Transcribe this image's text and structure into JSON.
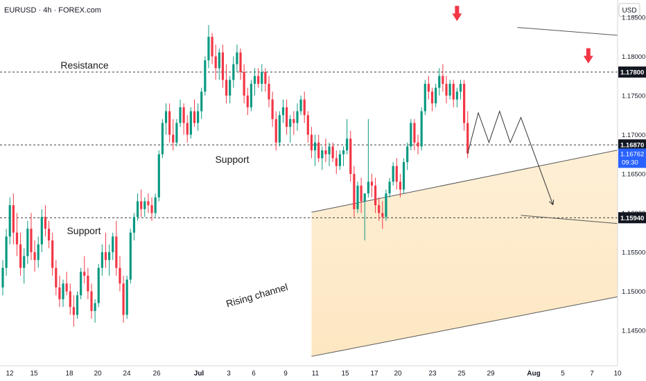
{
  "header": {
    "symbol_line": "EURUSD · 4h · FOREX.com"
  },
  "price_axis": {
    "currency": "USD",
    "ticks": [
      "1.18500",
      "1.18000",
      "1.17500",
      "1.17000",
      "1.16500",
      "1.16000",
      "1.15500",
      "1.15000",
      "1.14500"
    ],
    "markers": [
      {
        "value": "1.17800",
        "style": "dark"
      },
      {
        "value": "1.16870",
        "style": "dark"
      },
      {
        "value": "1.15940",
        "style": "dark"
      }
    ],
    "current": {
      "value": "1.16762",
      "countdown": "09:30",
      "color": "#2962ff"
    }
  },
  "time_axis": {
    "labels": [
      "12",
      "15",
      "18",
      "20",
      "24",
      "26",
      "Jul",
      "3",
      "6",
      "9",
      "11",
      "15",
      "17",
      "20",
      "23",
      "25",
      "29",
      "Aug",
      "5",
      "7",
      "10"
    ],
    "bold": [
      "Jul",
      "Aug"
    ]
  },
  "annotations": {
    "resistance": "Resistance",
    "support_mid": "Support",
    "support_low": "Support",
    "channel": "Rising channel"
  },
  "colors": {
    "bull": "#089981",
    "bear": "#f23645",
    "arrow": "#f23645",
    "shade": "#fde9c7"
  },
  "chart_data": {
    "type": "candlestick",
    "symbol": "EURUSD",
    "timeframe": "4h",
    "ylim": [
      1.1405,
      1.1872
    ],
    "levels": [
      1.178,
      1.1687,
      1.1594
    ],
    "last_price": 1.16762,
    "candles_ohlc": [
      [
        1.1505,
        1.154,
        1.1495,
        1.153
      ],
      [
        1.153,
        1.158,
        1.152,
        1.157
      ],
      [
        1.157,
        1.162,
        1.156,
        1.161
      ],
      [
        1.161,
        1.1625,
        1.156,
        1.1575
      ],
      [
        1.1575,
        1.16,
        1.1545,
        1.156
      ],
      [
        1.156,
        1.1575,
        1.152,
        1.153
      ],
      [
        1.153,
        1.1555,
        1.151,
        1.1545
      ],
      [
        1.1545,
        1.159,
        1.1535,
        1.158
      ],
      [
        1.158,
        1.16,
        1.154,
        1.155
      ],
      [
        1.155,
        1.1565,
        1.1525,
        1.154
      ],
      [
        1.154,
        1.157,
        1.153,
        1.156
      ],
      [
        1.156,
        1.1605,
        1.155,
        1.1595
      ],
      [
        1.1595,
        1.161,
        1.157,
        1.158
      ],
      [
        1.158,
        1.159,
        1.1555,
        1.1565
      ],
      [
        1.1565,
        1.1575,
        1.152,
        1.153
      ],
      [
        1.153,
        1.154,
        1.1495,
        1.1505
      ],
      [
        1.1505,
        1.152,
        1.148,
        1.149
      ],
      [
        1.149,
        1.1515,
        1.148,
        1.151
      ],
      [
        1.151,
        1.1525,
        1.1495,
        1.15
      ],
      [
        1.15,
        1.151,
        1.147,
        1.148
      ],
      [
        1.148,
        1.1495,
        1.1455,
        1.147
      ],
      [
        1.147,
        1.15,
        1.1465,
        1.1495
      ],
      [
        1.1495,
        1.153,
        1.149,
        1.1525
      ],
      [
        1.1525,
        1.1545,
        1.151,
        1.152
      ],
      [
        1.152,
        1.153,
        1.149,
        1.15
      ],
      [
        1.15,
        1.151,
        1.1465,
        1.1475
      ],
      [
        1.1475,
        1.149,
        1.146,
        1.1485
      ],
      [
        1.1485,
        1.1535,
        1.148,
        1.153
      ],
      [
        1.153,
        1.156,
        1.152,
        1.155
      ],
      [
        1.155,
        1.1575,
        1.153,
        1.154
      ],
      [
        1.154,
        1.156,
        1.152,
        1.155
      ],
      [
        1.155,
        1.1575,
        1.154,
        1.157
      ],
      [
        1.157,
        1.159,
        1.152,
        1.153
      ],
      [
        1.153,
        1.1545,
        1.15,
        1.151
      ],
      [
        1.151,
        1.152,
        1.146,
        1.147
      ],
      [
        1.147,
        1.152,
        1.1465,
        1.1515
      ],
      [
        1.1515,
        1.158,
        1.151,
        1.1575
      ],
      [
        1.1575,
        1.16,
        1.1565,
        1.1595
      ],
      [
        1.1595,
        1.1625,
        1.159,
        1.1615
      ],
      [
        1.1615,
        1.163,
        1.1595,
        1.1605
      ],
      [
        1.1605,
        1.162,
        1.1595,
        1.1615
      ],
      [
        1.1615,
        1.1625,
        1.16,
        1.161
      ],
      [
        1.161,
        1.162,
        1.159,
        1.16
      ],
      [
        1.16,
        1.1625,
        1.1595,
        1.162
      ],
      [
        1.162,
        1.168,
        1.1615,
        1.1675
      ],
      [
        1.1675,
        1.172,
        1.167,
        1.1715
      ],
      [
        1.1715,
        1.174,
        1.17,
        1.173
      ],
      [
        1.173,
        1.174,
        1.169,
        1.17
      ],
      [
        1.17,
        1.172,
        1.168,
        1.169
      ],
      [
        1.169,
        1.172,
        1.1685,
        1.1715
      ],
      [
        1.1715,
        1.1745,
        1.171,
        1.1735
      ],
      [
        1.1735,
        1.174,
        1.17,
        1.1715
      ],
      [
        1.1715,
        1.1725,
        1.169,
        1.17
      ],
      [
        1.17,
        1.1735,
        1.1695,
        1.173
      ],
      [
        1.173,
        1.1745,
        1.171,
        1.1715
      ],
      [
        1.1715,
        1.174,
        1.1705,
        1.173
      ],
      [
        1.173,
        1.176,
        1.172,
        1.1755
      ],
      [
        1.1755,
        1.18,
        1.175,
        1.1795
      ],
      [
        1.1795,
        1.184,
        1.1785,
        1.1825
      ],
      [
        1.1825,
        1.183,
        1.179,
        1.18
      ],
      [
        1.18,
        1.1815,
        1.177,
        1.1785
      ],
      [
        1.1785,
        1.181,
        1.177,
        1.1805
      ],
      [
        1.1805,
        1.1815,
        1.176,
        1.177
      ],
      [
        1.177,
        1.179,
        1.174,
        1.175
      ],
      [
        1.175,
        1.1775,
        1.174,
        1.177
      ],
      [
        1.177,
        1.18,
        1.176,
        1.179
      ],
      [
        1.179,
        1.1815,
        1.178,
        1.1805
      ],
      [
        1.1805,
        1.181,
        1.177,
        1.178
      ],
      [
        1.178,
        1.179,
        1.174,
        1.175
      ],
      [
        1.175,
        1.176,
        1.1725,
        1.1735
      ],
      [
        1.1735,
        1.177,
        1.173,
        1.1765
      ],
      [
        1.1765,
        1.1785,
        1.175,
        1.1775
      ],
      [
        1.1775,
        1.1785,
        1.176,
        1.1765
      ],
      [
        1.1765,
        1.179,
        1.1755,
        1.178
      ],
      [
        1.178,
        1.1785,
        1.1755,
        1.1765
      ],
      [
        1.1765,
        1.1775,
        1.1735,
        1.1745
      ],
      [
        1.1745,
        1.1755,
        1.171,
        1.172
      ],
      [
        1.172,
        1.173,
        1.168,
        1.169
      ],
      [
        1.169,
        1.173,
        1.1685,
        1.1725
      ],
      [
        1.1725,
        1.1745,
        1.1715,
        1.1735
      ],
      [
        1.1735,
        1.1745,
        1.17,
        1.171
      ],
      [
        1.171,
        1.1725,
        1.169,
        1.172
      ],
      [
        1.172,
        1.173,
        1.17,
        1.1715
      ],
      [
        1.1715,
        1.174,
        1.1705,
        1.173
      ],
      [
        1.173,
        1.175,
        1.1725,
        1.1745
      ],
      [
        1.1745,
        1.1755,
        1.1715,
        1.1725
      ],
      [
        1.1725,
        1.173,
        1.169,
        1.17
      ],
      [
        1.17,
        1.171,
        1.167,
        1.168
      ],
      [
        1.168,
        1.17,
        1.166,
        1.169
      ],
      [
        1.169,
        1.17,
        1.1665,
        1.167
      ],
      [
        1.167,
        1.1685,
        1.1655,
        1.168
      ],
      [
        1.168,
        1.1695,
        1.1665,
        1.1675
      ],
      [
        1.1675,
        1.169,
        1.166,
        1.1685
      ],
      [
        1.1685,
        1.169,
        1.1665,
        1.167
      ],
      [
        1.167,
        1.168,
        1.165,
        1.166
      ],
      [
        1.166,
        1.168,
        1.1655,
        1.1675
      ],
      [
        1.1675,
        1.1685,
        1.166,
        1.168
      ],
      [
        1.168,
        1.172,
        1.1675,
        1.1695
      ],
      [
        1.1695,
        1.1705,
        1.164,
        1.165
      ],
      [
        1.165,
        1.166,
        1.1595,
        1.1605
      ],
      [
        1.1605,
        1.164,
        1.16,
        1.1635
      ],
      [
        1.1635,
        1.1645,
        1.16,
        1.1615
      ],
      [
        1.1615,
        1.1625,
        1.1565,
        1.1625
      ],
      [
        1.1625,
        1.172,
        1.162,
        1.164
      ],
      [
        1.164,
        1.165,
        1.162,
        1.1635
      ],
      [
        1.1635,
        1.1645,
        1.16,
        1.161
      ],
      [
        1.161,
        1.162,
        1.159,
        1.16
      ],
      [
        1.16,
        1.1615,
        1.158,
        1.1595
      ],
      [
        1.1595,
        1.163,
        1.159,
        1.1625
      ],
      [
        1.1625,
        1.1645,
        1.162,
        1.164
      ],
      [
        1.164,
        1.1665,
        1.1635,
        1.166
      ],
      [
        1.166,
        1.167,
        1.163,
        1.164
      ],
      [
        1.164,
        1.165,
        1.162,
        1.163
      ],
      [
        1.163,
        1.167,
        1.1625,
        1.1665
      ],
      [
        1.1665,
        1.169,
        1.1655,
        1.1685
      ],
      [
        1.1685,
        1.172,
        1.168,
        1.1715
      ],
      [
        1.1715,
        1.172,
        1.168,
        1.169
      ],
      [
        1.169,
        1.17,
        1.1675,
        1.1685
      ],
      [
        1.1685,
        1.1735,
        1.168,
        1.173
      ],
      [
        1.173,
        1.177,
        1.1725,
        1.1765
      ],
      [
        1.1765,
        1.1775,
        1.1745,
        1.1755
      ],
      [
        1.1755,
        1.176,
        1.173,
        1.174
      ],
      [
        1.174,
        1.1765,
        1.1735,
        1.176
      ],
      [
        1.176,
        1.1785,
        1.175,
        1.1775
      ],
      [
        1.1775,
        1.179,
        1.1755,
        1.1765
      ],
      [
        1.1765,
        1.1775,
        1.174,
        1.175
      ],
      [
        1.175,
        1.177,
        1.1745,
        1.1765
      ],
      [
        1.1765,
        1.177,
        1.1735,
        1.1745
      ],
      [
        1.1745,
        1.176,
        1.1735,
        1.1755
      ],
      [
        1.1755,
        1.177,
        1.1745,
        1.1765
      ],
      [
        1.1765,
        1.177,
        1.1705,
        1.1715
      ],
      [
        1.1715,
        1.173,
        1.167,
        1.1676
      ]
    ],
    "projection": [
      [
        0,
        1.1676
      ],
      [
        3,
        1.1728
      ],
      [
        6,
        1.169
      ],
      [
        9,
        1.173
      ],
      [
        12,
        1.169
      ],
      [
        15,
        1.1722
      ],
      [
        24,
        1.1611
      ]
    ],
    "trend_lines": [
      {
        "name": "channel-upper",
        "from": [
          -44,
          1.1601
        ],
        "to": [
          219,
          1.1843
        ]
      },
      {
        "name": "channel-lower",
        "from": [
          -44,
          1.1417
        ],
        "to": [
          219,
          1.1649
        ]
      },
      {
        "name": "resistance-line",
        "from": [
          14,
          1.1837
        ],
        "to": [
          232,
          1.1759
        ]
      },
      {
        "name": "support-line",
        "from": [
          15,
          1.1597
        ],
        "to": [
          205,
          1.1524
        ]
      }
    ],
    "peak_arrows": [
      [
        -3,
        1.1845
      ],
      [
        34,
        1.1791
      ]
    ]
  }
}
